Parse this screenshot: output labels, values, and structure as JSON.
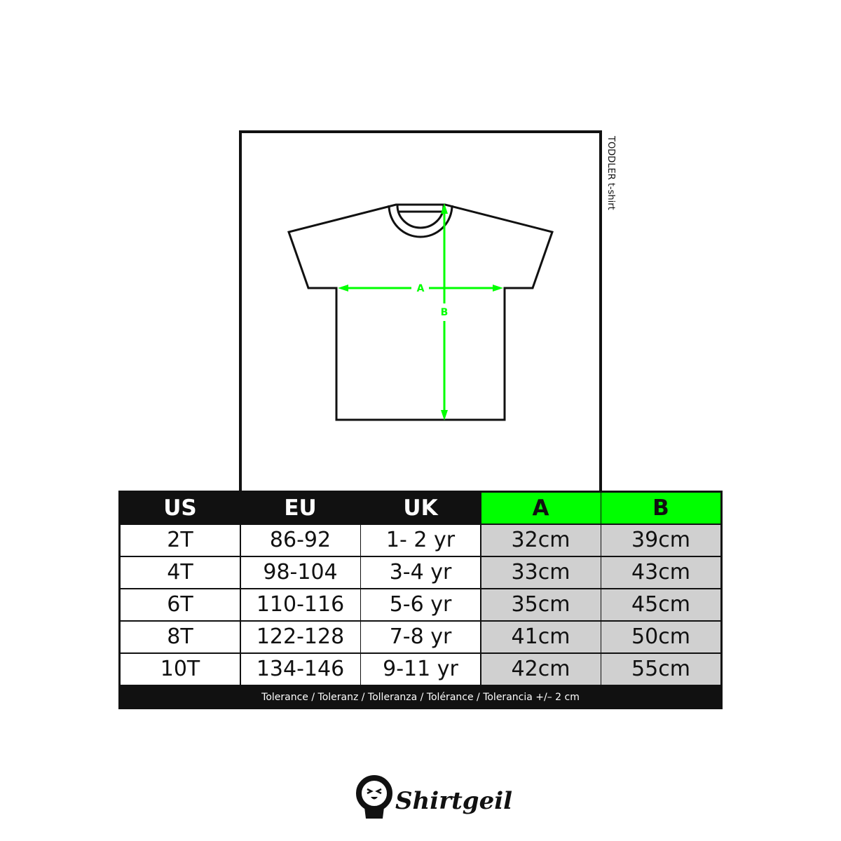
{
  "chart_label": "TODDLER t-shirt",
  "diagram": {
    "label_a": "A",
    "label_b": "B",
    "accent_color": "#00ff00"
  },
  "table": {
    "headers": [
      "US",
      "EU",
      "UK",
      "A",
      "B"
    ],
    "rows": [
      [
        "2T",
        "86-92",
        "1- 2 yr",
        "32cm",
        "39cm"
      ],
      [
        "4T",
        "98-104",
        "3-4 yr",
        "33cm",
        "43cm"
      ],
      [
        "6T",
        "110-116",
        "5-6 yr",
        "35cm",
        "45cm"
      ],
      [
        "8T",
        "122-128",
        "7-8 yr",
        "41cm",
        "50cm"
      ],
      [
        "10T",
        "134-146",
        "9-11 yr",
        "42cm",
        "55cm"
      ]
    ],
    "footer": "Tolerance / Toleranz / Tolleranza / Tolérance / Tolerancia +/– 2 cm"
  },
  "brand": {
    "name": "Shirtgeil"
  }
}
